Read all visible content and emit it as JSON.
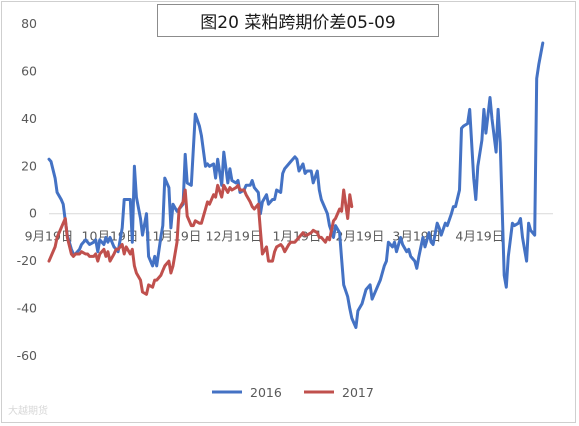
{
  "chart_data": {
    "type": "line",
    "title": "图20 菜粕跨期价差05-09",
    "xlabel": "",
    "ylabel": "",
    "ylim": [
      -60,
      80
    ],
    "yticks": [
      -60,
      -40,
      -20,
      0,
      20,
      40,
      60,
      80
    ],
    "x_tick_labels": [
      "9月19日",
      "10月19日",
      "11月19日",
      "12月19日",
      "1月19日",
      "2月19日",
      "3月19日",
      "4月19日"
    ],
    "x_tick_days": [
      0,
      30,
      61,
      91,
      122,
      153,
      181,
      212
    ],
    "x_range_days": [
      0,
      248
    ],
    "grid": false,
    "legend_position": "bottom",
    "colors": {
      "2016": "#4472c4",
      "2017": "#c0504d"
    },
    "series": [
      {
        "name": "2016",
        "points": [
          [
            0,
            23
          ],
          [
            1,
            22
          ],
          [
            3,
            15
          ],
          [
            4,
            9
          ],
          [
            6,
            6
          ],
          [
            7,
            4
          ],
          [
            8,
            -3
          ],
          [
            9,
            -9
          ],
          [
            11,
            -15
          ],
          [
            12,
            -17
          ],
          [
            13,
            -17
          ],
          [
            15,
            -15
          ],
          [
            16,
            -13
          ],
          [
            18,
            -11
          ],
          [
            19,
            -12
          ],
          [
            20,
            -13
          ],
          [
            22,
            -12
          ],
          [
            23,
            -11
          ],
          [
            24,
            -16
          ],
          [
            25,
            -11
          ],
          [
            27,
            -13
          ],
          [
            28,
            -10
          ],
          [
            29,
            -12
          ],
          [
            30,
            -10
          ],
          [
            32,
            -14
          ],
          [
            33,
            -15
          ],
          [
            34,
            -16
          ],
          [
            36,
            -6
          ],
          [
            37,
            6
          ],
          [
            38,
            6
          ],
          [
            40,
            6
          ],
          [
            41,
            -12
          ],
          [
            42,
            20
          ],
          [
            43,
            7
          ],
          [
            45,
            -2
          ],
          [
            46,
            -9
          ],
          [
            48,
            0
          ],
          [
            49,
            -18
          ],
          [
            51,
            -22
          ],
          [
            52,
            -18
          ],
          [
            53,
            -22
          ],
          [
            55,
            -10
          ],
          [
            56,
            -5
          ],
          [
            57,
            15
          ],
          [
            59,
            11
          ],
          [
            60,
            -6
          ],
          [
            61,
            4
          ],
          [
            63,
            1
          ],
          [
            64,
            2
          ],
          [
            66,
            4
          ],
          [
            67,
            25
          ],
          [
            68,
            13
          ],
          [
            70,
            12
          ],
          [
            71,
            27
          ],
          [
            72,
            42
          ],
          [
            74,
            37
          ],
          [
            75,
            33
          ],
          [
            77,
            20
          ],
          [
            78,
            21
          ],
          [
            79,
            20
          ],
          [
            81,
            21
          ],
          [
            82,
            15
          ],
          [
            83,
            23
          ],
          [
            85,
            12
          ],
          [
            86,
            26
          ],
          [
            88,
            13
          ],
          [
            89,
            19
          ],
          [
            90,
            14
          ],
          [
            92,
            13
          ],
          [
            93,
            14
          ],
          [
            94,
            9
          ],
          [
            96,
            10
          ],
          [
            97,
            12
          ],
          [
            99,
            12
          ],
          [
            100,
            14
          ],
          [
            101,
            11
          ],
          [
            103,
            9
          ],
          [
            104,
            0
          ],
          [
            105,
            5
          ],
          [
            107,
            8
          ],
          [
            108,
            4
          ],
          [
            110,
            6
          ],
          [
            111,
            6
          ],
          [
            112,
            10
          ],
          [
            114,
            9
          ],
          [
            115,
            17
          ],
          [
            116,
            19
          ],
          [
            118,
            21
          ],
          [
            119,
            22
          ],
          [
            121,
            24
          ],
          [
            122,
            23
          ],
          [
            123,
            18
          ],
          [
            125,
            21
          ],
          [
            126,
            17
          ],
          [
            127,
            18
          ],
          [
            129,
            18
          ],
          [
            130,
            13
          ],
          [
            132,
            18
          ],
          [
            133,
            10
          ],
          [
            134,
            6
          ],
          [
            136,
            2
          ],
          [
            137,
            0
          ],
          [
            138,
            -5
          ],
          [
            140,
            -10
          ],
          [
            141,
            -5
          ],
          [
            143,
            -8
          ],
          [
            144,
            -19
          ],
          [
            145,
            -30
          ],
          [
            147,
            -35
          ],
          [
            148,
            -40
          ],
          [
            149,
            -44
          ],
          [
            151,
            -48
          ],
          [
            152,
            -41
          ],
          [
            154,
            -38
          ],
          [
            155,
            -35
          ],
          [
            156,
            -32
          ],
          [
            158,
            -30
          ],
          [
            159,
            -36
          ],
          [
            160,
            -34
          ],
          [
            162,
            -30
          ],
          [
            163,
            -28
          ],
          [
            165,
            -22
          ],
          [
            166,
            -20
          ],
          [
            167,
            -12
          ],
          [
            169,
            -14
          ],
          [
            170,
            -12
          ],
          [
            171,
            -16
          ],
          [
            173,
            -10
          ],
          [
            174,
            -13
          ],
          [
            176,
            -16
          ],
          [
            177,
            -15
          ],
          [
            178,
            -18
          ],
          [
            180,
            -20
          ],
          [
            181,
            -23
          ],
          [
            182,
            -18
          ],
          [
            184,
            -10
          ],
          [
            185,
            -14
          ],
          [
            187,
            -8
          ],
          [
            188,
            -12
          ],
          [
            189,
            -13
          ],
          [
            191,
            -4
          ],
          [
            192,
            -6
          ],
          [
            193,
            -9
          ],
          [
            195,
            -4
          ],
          [
            196,
            -5
          ],
          [
            198,
            0
          ],
          [
            199,
            3
          ],
          [
            200,
            3
          ],
          [
            202,
            10
          ],
          [
            203,
            36
          ],
          [
            204,
            37
          ],
          [
            206,
            38
          ],
          [
            207,
            44
          ],
          [
            209,
            15
          ],
          [
            210,
            6
          ],
          [
            211,
            20
          ],
          [
            213,
            31
          ],
          [
            214,
            44
          ],
          [
            215,
            34
          ],
          [
            217,
            49
          ],
          [
            218,
            40
          ],
          [
            220,
            26
          ],
          [
            221,
            44
          ],
          [
            222,
            30
          ],
          [
            224,
            -26
          ],
          [
            225,
            -31
          ],
          [
            226,
            -18
          ],
          [
            228,
            -4
          ],
          [
            229,
            -5
          ],
          [
            231,
            -4
          ],
          [
            232,
            -2
          ],
          [
            233,
            -10
          ],
          [
            235,
            -20
          ],
          [
            236,
            -4
          ],
          [
            237,
            -7
          ],
          [
            239,
            -9
          ],
          [
            240,
            57
          ],
          [
            241,
            63
          ],
          [
            243,
            72
          ]
        ]
      },
      {
        "name": "2017",
        "points": [
          [
            0,
            -20
          ],
          [
            1,
            -18
          ],
          [
            3,
            -14
          ],
          [
            4,
            -10
          ],
          [
            6,
            -6
          ],
          [
            7,
            -4
          ],
          [
            8,
            -2
          ],
          [
            9,
            -10
          ],
          [
            11,
            -17
          ],
          [
            12,
            -18
          ],
          [
            13,
            -17
          ],
          [
            15,
            -17
          ],
          [
            16,
            -16
          ],
          [
            18,
            -17
          ],
          [
            19,
            -17
          ],
          [
            20,
            -18
          ],
          [
            22,
            -18
          ],
          [
            23,
            -17
          ],
          [
            24,
            -20
          ],
          [
            25,
            -17
          ],
          [
            27,
            -15
          ],
          [
            28,
            -18
          ],
          [
            29,
            -16
          ],
          [
            30,
            -20
          ],
          [
            32,
            -17
          ],
          [
            33,
            -15
          ],
          [
            34,
            -15
          ],
          [
            36,
            -13
          ],
          [
            37,
            -17
          ],
          [
            38,
            -14
          ],
          [
            40,
            -17
          ],
          [
            41,
            -15
          ],
          [
            42,
            -22
          ],
          [
            43,
            -25
          ],
          [
            45,
            -28
          ],
          [
            46,
            -33
          ],
          [
            48,
            -34
          ],
          [
            49,
            -30
          ],
          [
            51,
            -31
          ],
          [
            52,
            -28
          ],
          [
            53,
            -28
          ],
          [
            55,
            -26
          ],
          [
            56,
            -24
          ],
          [
            57,
            -22
          ],
          [
            59,
            -20
          ],
          [
            60,
            -25
          ],
          [
            61,
            -22
          ],
          [
            63,
            -12
          ],
          [
            64,
            2
          ],
          [
            66,
            5
          ],
          [
            67,
            10
          ],
          [
            68,
            -1
          ],
          [
            70,
            -5
          ],
          [
            71,
            -5
          ],
          [
            72,
            -3
          ],
          [
            74,
            -4
          ],
          [
            75,
            -4
          ],
          [
            77,
            2
          ],
          [
            78,
            5
          ],
          [
            79,
            4
          ],
          [
            81,
            8
          ],
          [
            82,
            7
          ],
          [
            83,
            12
          ],
          [
            85,
            7
          ],
          [
            86,
            12
          ],
          [
            88,
            9
          ],
          [
            89,
            11
          ],
          [
            90,
            10
          ],
          [
            92,
            11
          ],
          [
            93,
            12
          ],
          [
            94,
            10
          ],
          [
            96,
            10
          ],
          [
            97,
            8
          ],
          [
            99,
            5
          ],
          [
            100,
            3
          ],
          [
            101,
            2
          ],
          [
            103,
            4
          ],
          [
            104,
            -7
          ],
          [
            105,
            -17
          ],
          [
            107,
            -14
          ],
          [
            108,
            -20
          ],
          [
            110,
            -20
          ],
          [
            111,
            -16
          ],
          [
            112,
            -14
          ],
          [
            114,
            -13
          ],
          [
            115,
            -14
          ],
          [
            116,
            -16
          ],
          [
            118,
            -13
          ],
          [
            119,
            -12
          ],
          [
            121,
            -12
          ],
          [
            122,
            -11
          ],
          [
            123,
            -10
          ],
          [
            125,
            -8
          ],
          [
            126,
            -9
          ],
          [
            127,
            -9
          ],
          [
            129,
            -8
          ],
          [
            130,
            -7
          ],
          [
            132,
            -8
          ],
          [
            133,
            -10
          ],
          [
            134,
            -10
          ],
          [
            136,
            -12
          ],
          [
            137,
            -10
          ],
          [
            138,
            -11
          ],
          [
            140,
            -3
          ],
          [
            141,
            -2
          ],
          [
            143,
            2
          ],
          [
            144,
            1
          ],
          [
            145,
            10
          ],
          [
            147,
            -2
          ],
          [
            148,
            8
          ],
          [
            149,
            3
          ]
        ]
      }
    ]
  },
  "watermark_text": "大越期货"
}
